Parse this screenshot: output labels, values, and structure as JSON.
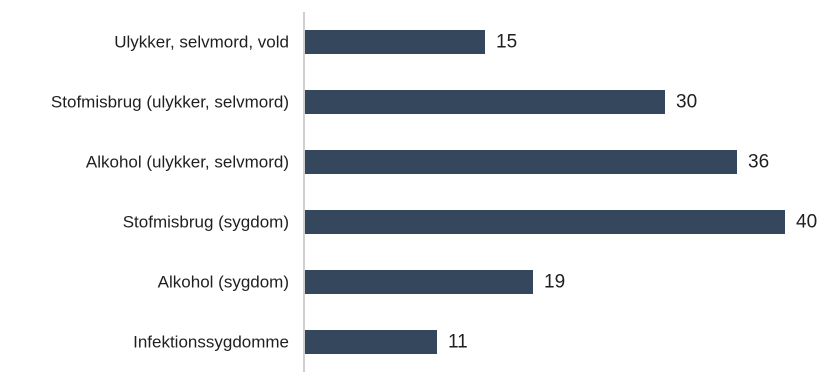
{
  "chart_data": {
    "type": "bar",
    "orientation": "horizontal",
    "categories": [
      "Ulykker, selvmord, vold",
      "Stofmisbrug (ulykker, selvmord)",
      "Alkohol (ulykker, selvmord)",
      "Stofmisbrug (sygdom)",
      "Alkohol (sygdom)",
      "Infektionssygdomme"
    ],
    "values": [
      15,
      30,
      36,
      40,
      19,
      11
    ],
    "data_labels": [
      "15",
      "30",
      "36",
      "40",
      "19",
      "11"
    ],
    "xlim": [
      0,
      40
    ],
    "bar_color": "#34475c",
    "axis_color": "#bfbfbf",
    "grid": false,
    "legend": "none"
  }
}
